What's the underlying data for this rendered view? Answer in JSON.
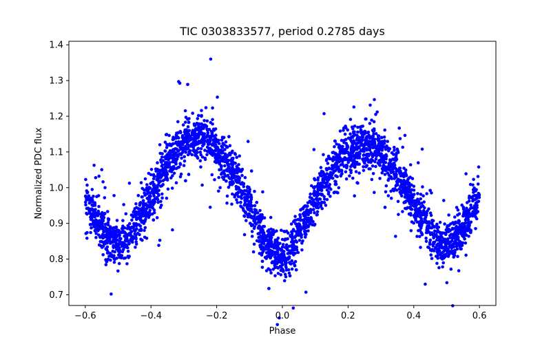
{
  "chart_data": {
    "type": "scatter",
    "title": "TIC 0303833577, period 0.2785 days",
    "xlabel": "Phase",
    "ylabel": "Normalized PDC flux",
    "xlim": [
      -0.65,
      0.65
    ],
    "ylim": [
      0.67,
      1.41
    ],
    "xticks": [
      -0.6,
      -0.4,
      -0.2,
      0.0,
      0.2,
      0.4,
      0.6
    ],
    "xtick_labels": [
      "−0.6",
      "−0.4",
      "−0.2",
      "0.0",
      "0.2",
      "0.4",
      "0.6"
    ],
    "yticks": [
      0.7,
      0.8,
      0.9,
      1.0,
      1.1,
      1.2,
      1.3,
      1.4
    ],
    "ytick_labels": [
      "0.7",
      "0.8",
      "0.9",
      "1.0",
      "1.1",
      "1.2",
      "1.3",
      "1.4"
    ],
    "grid": false,
    "marker_color": "#0000ff",
    "series": [
      {
        "phase": [
          -0.6,
          -0.58,
          -0.56,
          -0.54,
          -0.52,
          -0.5,
          -0.48,
          -0.46,
          -0.44,
          -0.42,
          -0.4,
          -0.38,
          -0.36,
          -0.34,
          -0.32,
          -0.3,
          -0.28,
          -0.26,
          -0.24,
          -0.22,
          -0.2,
          -0.18,
          -0.16,
          -0.14,
          -0.12,
          -0.1,
          -0.08,
          -0.06,
          -0.04,
          -0.02,
          0.0,
          0.02,
          0.04,
          0.06,
          0.08,
          0.1,
          0.12,
          0.14,
          0.16,
          0.18,
          0.2,
          0.22,
          0.24,
          0.26,
          0.28,
          0.3,
          0.32,
          0.34,
          0.36,
          0.38,
          0.4,
          0.42,
          0.44,
          0.46,
          0.48,
          0.5,
          0.52,
          0.54,
          0.56,
          0.58,
          0.6
        ],
        "flux": [
          0.975,
          0.93,
          0.895,
          0.87,
          0.85,
          0.84,
          0.85,
          0.875,
          0.905,
          0.94,
          0.975,
          1.01,
          1.045,
          1.075,
          1.1,
          1.12,
          1.135,
          1.14,
          1.14,
          1.13,
          1.11,
          1.085,
          1.055,
          1.02,
          0.985,
          0.945,
          0.905,
          0.87,
          0.84,
          0.815,
          0.805,
          0.82,
          0.85,
          0.885,
          0.925,
          0.965,
          1.0,
          1.035,
          1.065,
          1.085,
          1.1,
          1.11,
          1.115,
          1.115,
          1.11,
          1.095,
          1.075,
          1.05,
          1.02,
          0.99,
          0.955,
          0.92,
          0.89,
          0.865,
          0.845,
          0.84,
          0.85,
          0.875,
          0.905,
          0.94,
          0.975
        ],
        "scatter": 0.03
      }
    ]
  }
}
